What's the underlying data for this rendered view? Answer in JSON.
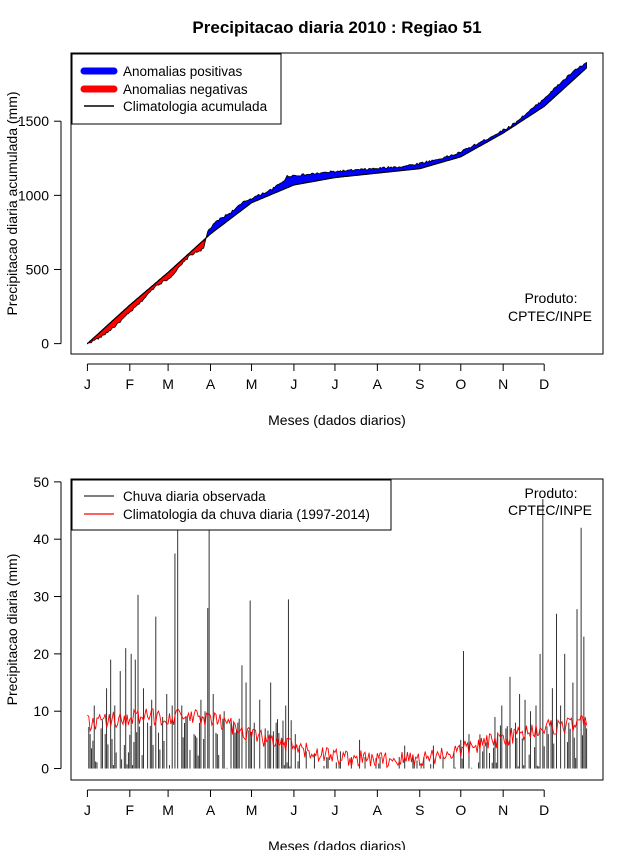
{
  "figure": {
    "title": "Precipitacao diaria 2010 : Regiao 51"
  },
  "colors": {
    "positive": "#0000ff",
    "negative": "#ff0000",
    "climatology_line": "#000000",
    "observed_bar": "#333333",
    "climatology_daily": "#ff0000"
  },
  "chart_data": [
    {
      "type": "area",
      "id": "top",
      "title": "Precipitacao diaria 2010 : Regiao 51",
      "xlabel": "Meses (dados diarios)",
      "ylabel": "Precipitacao diaria acumulada (mm)",
      "month_labels": [
        "J",
        "F",
        "M",
        "A",
        "M",
        "J",
        "J",
        "A",
        "S",
        "O",
        "N",
        "D"
      ],
      "yticks": [
        0,
        500,
        1000,
        1500
      ],
      "ylim": [
        -70,
        1960
      ],
      "xlim": [
        -12,
        377
      ],
      "legend": {
        "position": "top-left",
        "entries": [
          "Anomalias positivas",
          "Anomalias negativas",
          "Climatologia acumulada"
        ]
      },
      "annotation": [
        "Produto:",
        "CPTEC/INPE"
      ],
      "observed_anchors": [
        [
          0,
          0
        ],
        [
          10,
          45
        ],
        [
          20,
          115
        ],
        [
          38,
          270
        ],
        [
          50,
          390
        ],
        [
          60,
          440
        ],
        [
          75,
          595
        ],
        [
          85,
          640
        ],
        [
          88,
          760
        ],
        [
          95,
          830
        ],
        [
          104,
          880
        ],
        [
          115,
          960
        ],
        [
          125,
          1000
        ],
        [
          135,
          1040
        ],
        [
          145,
          1110
        ],
        [
          146,
          1130
        ],
        [
          160,
          1140
        ],
        [
          180,
          1160
        ],
        [
          210,
          1180
        ],
        [
          230,
          1195
        ],
        [
          240,
          1210
        ],
        [
          255,
          1240
        ],
        [
          270,
          1280
        ],
        [
          290,
          1370
        ],
        [
          310,
          1470
        ],
        [
          330,
          1620
        ],
        [
          345,
          1750
        ],
        [
          357,
          1850
        ],
        [
          365,
          1890
        ]
      ],
      "climatology_anchors": [
        [
          0,
          0
        ],
        [
          31,
          260
        ],
        [
          59,
          480
        ],
        [
          90,
          740
        ],
        [
          120,
          950
        ],
        [
          151,
          1070
        ],
        [
          181,
          1120
        ],
        [
          212,
          1150
        ],
        [
          243,
          1180
        ],
        [
          273,
          1260
        ],
        [
          304,
          1420
        ],
        [
          334,
          1600
        ],
        [
          365,
          1860
        ]
      ]
    },
    {
      "type": "bar",
      "id": "bottom",
      "xlabel": "Meses (dados diarios)",
      "ylabel": "Precipitacao diaria (mm)",
      "month_labels": [
        "J",
        "F",
        "M",
        "A",
        "M",
        "J",
        "J",
        "A",
        "S",
        "O",
        "N",
        "D"
      ],
      "yticks": [
        0,
        10,
        20,
        30,
        40,
        50
      ],
      "ylim": [
        -2,
        50.5
      ],
      "xlim": [
        -12,
        377
      ],
      "legend": {
        "position": "top-left",
        "entries": [
          "Chuva diaria observada",
          "Climatologia da chuva diaria (1997-2014)"
        ]
      },
      "annotation": [
        "Produto:",
        "CPTEC/INPE"
      ],
      "observed_peaks": [
        [
          2,
          6
        ],
        [
          5,
          11
        ],
        [
          10,
          7
        ],
        [
          14,
          14
        ],
        [
          17,
          19
        ],
        [
          20,
          11
        ],
        [
          24,
          17
        ],
        [
          28,
          21
        ],
        [
          32,
          20
        ],
        [
          35,
          19
        ],
        [
          37,
          30.3
        ],
        [
          41,
          14
        ],
        [
          44,
          8
        ],
        [
          47,
          12
        ],
        [
          50,
          26.5
        ],
        [
          55,
          9
        ],
        [
          58,
          13
        ],
        [
          62,
          11
        ],
        [
          64,
          37.5
        ],
        [
          66,
          45
        ],
        [
          69,
          11
        ],
        [
          73,
          9
        ],
        [
          78,
          6
        ],
        [
          83,
          12
        ],
        [
          86,
          10
        ],
        [
          88,
          28
        ],
        [
          89,
          45
        ],
        [
          92,
          13
        ],
        [
          95,
          6
        ],
        [
          100,
          10
        ],
        [
          105,
          8
        ],
        [
          110,
          8
        ],
        [
          113,
          18
        ],
        [
          116,
          15
        ],
        [
          119,
          29.3
        ],
        [
          122,
          8
        ],
        [
          126,
          12
        ],
        [
          130,
          7
        ],
        [
          134,
          15
        ],
        [
          138,
          8
        ],
        [
          142,
          5
        ],
        [
          145,
          11
        ],
        [
          147,
          29.5
        ],
        [
          152,
          6
        ],
        [
          155,
          4
        ],
        [
          160,
          3
        ],
        [
          166,
          2.5
        ],
        [
          175,
          2
        ],
        [
          185,
          3
        ],
        [
          193,
          2
        ],
        [
          199,
          5
        ],
        [
          203,
          2
        ],
        [
          214,
          2
        ],
        [
          228,
          2
        ],
        [
          232,
          4
        ],
        [
          238,
          2
        ],
        [
          246,
          2
        ],
        [
          253,
          4
        ],
        [
          260,
          2
        ],
        [
          268,
          3
        ],
        [
          273,
          5
        ],
        [
          275,
          20.5
        ],
        [
          279,
          6
        ],
        [
          290,
          4
        ],
        [
          298,
          9
        ],
        [
          303,
          11
        ],
        [
          306,
          7
        ],
        [
          309,
          16
        ],
        [
          313,
          8
        ],
        [
          316,
          13
        ],
        [
          320,
          12
        ],
        [
          324,
          10
        ],
        [
          328,
          11
        ],
        [
          331,
          20
        ],
        [
          333,
          47
        ],
        [
          337,
          6
        ],
        [
          340,
          14
        ],
        [
          343,
          27
        ],
        [
          346,
          11
        ],
        [
          349,
          20
        ],
        [
          352,
          8
        ],
        [
          355,
          15
        ],
        [
          358,
          27.8
        ],
        [
          361,
          42
        ],
        [
          363,
          23
        ],
        [
          365,
          7
        ]
      ]
    }
  ]
}
